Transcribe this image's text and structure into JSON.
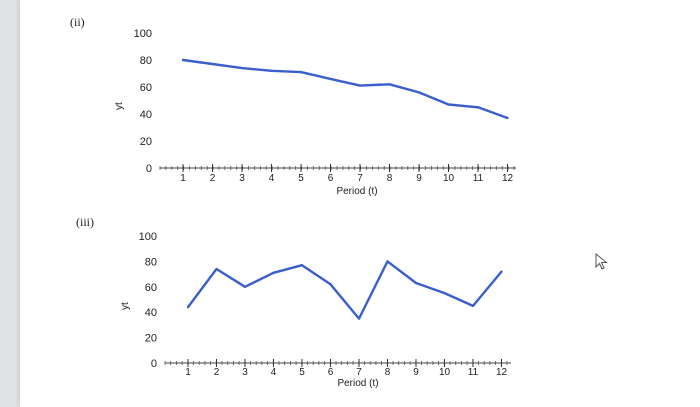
{
  "chart_data": [
    {
      "type": "line",
      "panel_label": "(ii)",
      "xlabel": "Period (t)",
      "ylabel": "yt",
      "x": [
        1,
        2,
        3,
        4,
        5,
        6,
        7,
        8,
        9,
        10,
        11,
        12
      ],
      "y_ticks": [
        "0",
        "20",
        "40",
        "60",
        "80",
        "100"
      ],
      "x_ticks": [
        "1",
        "2",
        "3",
        "4",
        "5",
        "6",
        "7",
        "8",
        "9",
        "10",
        "11",
        "12"
      ],
      "ylim": [
        0,
        110
      ],
      "series": [
        {
          "values": [
            80,
            77,
            74,
            72,
            71,
            66,
            61,
            62,
            56,
            47,
            45,
            37
          ],
          "color": "#3a5fcd"
        }
      ]
    },
    {
      "type": "line",
      "panel_label": "(iii)",
      "xlabel": "Period (t)",
      "ylabel": "yt",
      "x": [
        1,
        2,
        3,
        4,
        5,
        6,
        7,
        8,
        9,
        10,
        11,
        12
      ],
      "y_ticks": [
        "0",
        "20",
        "40",
        "60",
        "80",
        "100"
      ],
      "x_ticks": [
        "1",
        "2",
        "3",
        "4",
        "5",
        "6",
        "7",
        "8",
        "9",
        "10",
        "11",
        "12"
      ],
      "ylim": [
        0,
        110
      ],
      "series": [
        {
          "values": [
            44,
            74,
            60,
            71,
            77,
            62,
            35,
            80,
            63,
            55,
            45,
            72
          ],
          "color": "#3a5fcd"
        }
      ]
    }
  ],
  "cursor": {
    "icon": "pointer-arrow-icon"
  }
}
